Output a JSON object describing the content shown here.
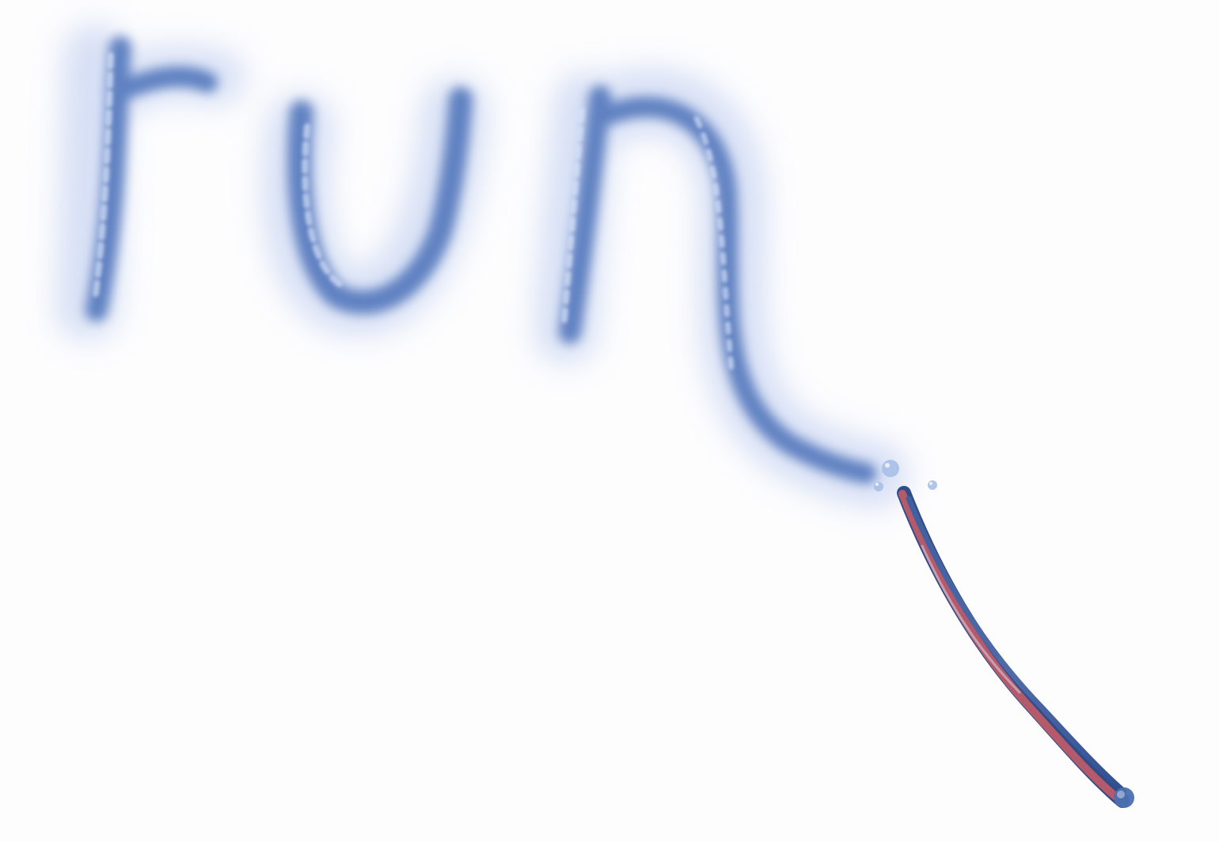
{
  "scene": {
    "written_word": "run",
    "colors": {
      "background": "#fdfdfe",
      "smoke_blue": "#5a7dbf",
      "smoke_light": "#b8c8ee",
      "wand_blue": "#3f5f9e",
      "wand_red": "#b45a6b",
      "droplet": "#a9bfe6"
    }
  }
}
